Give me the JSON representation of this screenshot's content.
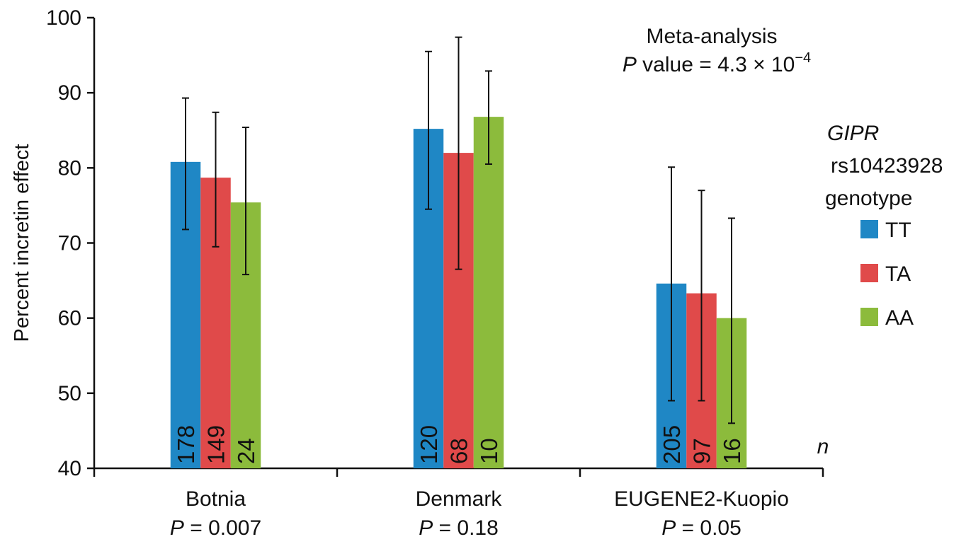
{
  "chart_data": {
    "type": "bar",
    "ylabel": "Percent incretin effect",
    "ylim": [
      40,
      100
    ],
    "yticks": [
      "40",
      "50",
      "60",
      "70",
      "80",
      "90",
      "100"
    ],
    "categories": [
      "Botnia",
      "Denmark",
      "EUGENE2-Kuopio"
    ],
    "category_p_values": [
      "0.007",
      "0.18",
      "0.05"
    ],
    "p_symbol": "P",
    "p_equals": " = ",
    "n_axis_label": "n",
    "series": [
      {
        "name": "TT",
        "color": "#1f87c5",
        "values": [
          80.8,
          85.2,
          64.6
        ],
        "error_low": [
          71.8,
          74.5,
          49.0
        ],
        "error_high": [
          89.3,
          95.5,
          80.1
        ],
        "n": [
          "178",
          "120",
          "205"
        ]
      },
      {
        "name": "TA",
        "color": "#e04a4a",
        "values": [
          78.7,
          82.0,
          63.3
        ],
        "error_low": [
          69.5,
          66.5,
          49.0
        ],
        "error_high": [
          87.4,
          97.4,
          77.0
        ],
        "n": [
          "149",
          "68",
          "97"
        ]
      },
      {
        "name": "AA",
        "color": "#8cbb3c",
        "values": [
          75.4,
          86.8,
          60.0
        ],
        "error_low": [
          65.8,
          80.5,
          46.0
        ],
        "error_high": [
          85.4,
          92.9,
          73.3
        ],
        "n": [
          "24",
          "10",
          "16"
        ]
      }
    ],
    "legend": {
      "title_gene": "GIPR",
      "title_snp": "rs10423928",
      "title_word": "genotype",
      "position": "right"
    },
    "annotation": {
      "line1": "Meta-analysis",
      "p_symbol": "P",
      "line2_text": " value = 4.3 × 10",
      "exponent": "−4"
    },
    "grid": false
  }
}
